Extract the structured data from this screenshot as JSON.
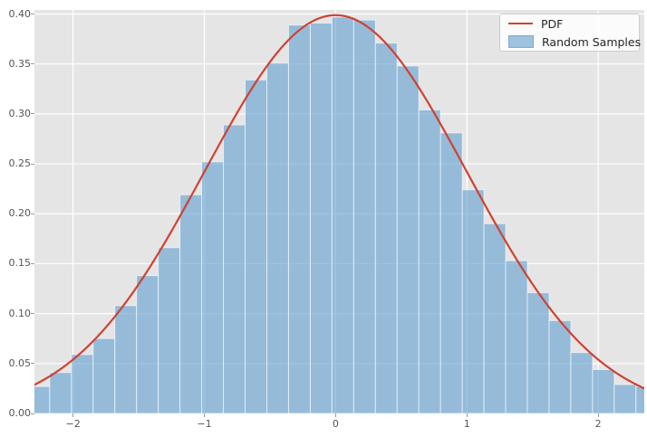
{
  "figure": {
    "background": "#ffffff",
    "axes_background": "#e5e5e5",
    "grid_color": "#ffffff",
    "tick_color": "#999999",
    "tick_label_color": "#555555"
  },
  "legend": {
    "position": "upper right",
    "items": [
      {
        "label": "PDF",
        "type": "line",
        "color": "#cf4232"
      },
      {
        "label": "Random Samples",
        "type": "patch",
        "color": "rgba(95,158,209,0.6)"
      }
    ]
  },
  "axes": {
    "x_ticks": [
      {
        "value": -2,
        "label": "−2"
      },
      {
        "value": -1,
        "label": "−1"
      },
      {
        "value": 0,
        "label": "0"
      },
      {
        "value": 1,
        "label": "1"
      },
      {
        "value": 2,
        "label": "2"
      }
    ],
    "y_ticks": [
      {
        "value": 0.0,
        "label": "0.00"
      },
      {
        "value": 0.05,
        "label": "0.05"
      },
      {
        "value": 0.1,
        "label": "0.10"
      },
      {
        "value": 0.15,
        "label": "0.15"
      },
      {
        "value": 0.2,
        "label": "0.20"
      },
      {
        "value": 0.25,
        "label": "0.25"
      },
      {
        "value": 0.3,
        "label": "0.30"
      },
      {
        "value": 0.35,
        "label": "0.35"
      },
      {
        "value": 0.4,
        "label": "0.40"
      }
    ]
  },
  "chart_data": {
    "type": "histogram+line",
    "title": "",
    "xlabel": "",
    "ylabel": "",
    "xlim": [
      -2.294,
      2.351
    ],
    "ylim": [
      0,
      0.4041
    ],
    "grid": true,
    "legend_position": "upper right",
    "histogram": {
      "name": "Random Samples",
      "density": true,
      "bin_start": -2.343,
      "bin_width": 0.16538,
      "heights": [
        0.027,
        0.041,
        0.059,
        0.075,
        0.108,
        0.138,
        0.166,
        0.219,
        0.252,
        0.289,
        0.334,
        0.351,
        0.389,
        0.391,
        0.397,
        0.394,
        0.371,
        0.348,
        0.304,
        0.281,
        0.224,
        0.19,
        0.153,
        0.121,
        0.093,
        0.061,
        0.044,
        0.029,
        0.027
      ],
      "fill_color": "#5f9ed1",
      "fill_opacity": 0.6,
      "edge_color": "rgba(255,255,255,0.6)"
    },
    "pdf": {
      "name": "PDF",
      "distribution": "normal",
      "mu": 0,
      "sigma": 1,
      "peak": 0.3989,
      "line_color": "#cf4232",
      "line_width": 2.2
    }
  }
}
